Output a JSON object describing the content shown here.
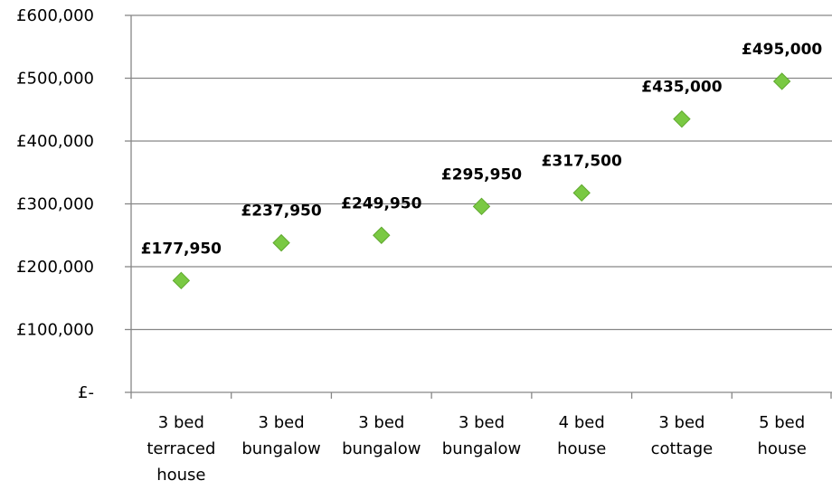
{
  "chart_data": {
    "type": "scatter",
    "categories": [
      [
        "3 bed",
        "terraced",
        "house"
      ],
      [
        "3 bed",
        "bungalow"
      ],
      [
        "3 bed",
        "bungalow"
      ],
      [
        "3 bed",
        "bungalow"
      ],
      [
        "4 bed",
        "house"
      ],
      [
        "3 bed",
        "cottage"
      ],
      [
        "5 bed",
        "house"
      ]
    ],
    "values": [
      177950,
      237950,
      249950,
      295950,
      317500,
      435000,
      495000
    ],
    "data_labels": [
      "£177,950",
      "£237,950",
      "£249,950",
      "£295,950",
      "£317,500",
      "£435,000",
      "£495,000"
    ],
    "y_ticks": [
      {
        "value": 0,
        "label": "£-"
      },
      {
        "value": 100000,
        "label": "£100,000"
      },
      {
        "value": 200000,
        "label": "£200,000"
      },
      {
        "value": 300000,
        "label": "£300,000"
      },
      {
        "value": 400000,
        "label": "£400,000"
      },
      {
        "value": 500000,
        "label": "£500,000"
      },
      {
        "value": 600000,
        "label": "£600,000"
      }
    ],
    "ylim": [
      0,
      600000
    ],
    "grid": true,
    "legend": "none",
    "marker": "diamond",
    "colors": {
      "marker": "#7AC943",
      "marker_edge": "#5FA82E",
      "grid": "#878787",
      "axis": "#878787",
      "text": "#000000"
    }
  }
}
